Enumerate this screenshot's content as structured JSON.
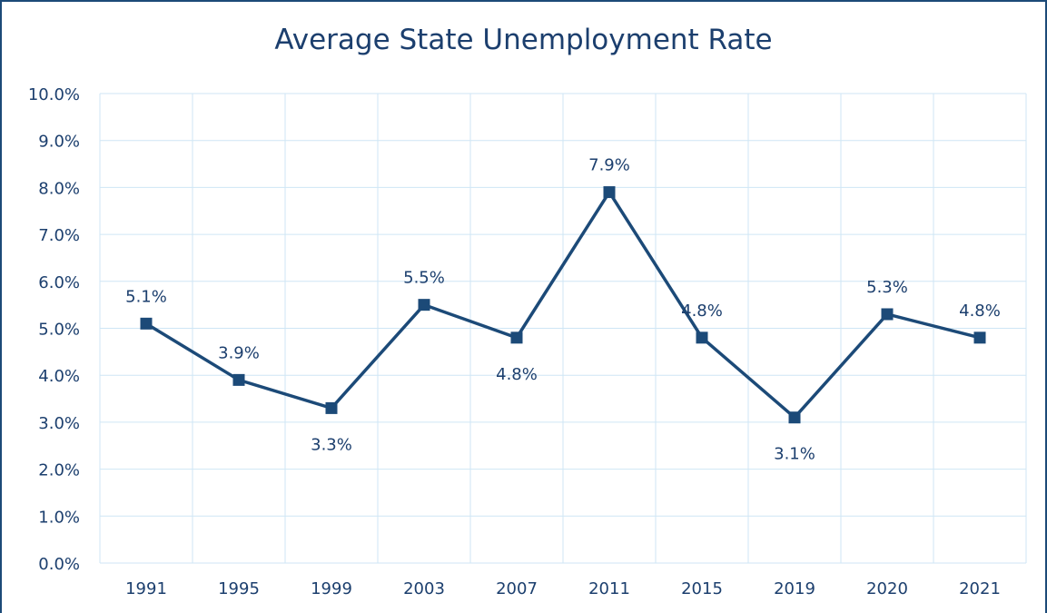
{
  "chart_data": {
    "type": "line",
    "title": "Average State Unemployment Rate",
    "categories": [
      "1991",
      "1995",
      "1999",
      "2003",
      "2007",
      "2011",
      "2015",
      "2019",
      "2020",
      "2021"
    ],
    "values": [
      5.1,
      3.9,
      3.3,
      5.5,
      4.8,
      7.9,
      4.8,
      3.1,
      5.3,
      4.8
    ],
    "data_labels": [
      "5.1%",
      "3.9%",
      "3.3%",
      "5.5%",
      "4.8%",
      "7.9%",
      "4.8%",
      "3.1%",
      "5.3%",
      "4.8%"
    ],
    "ylim": [
      0,
      10
    ],
    "y_ticks": [
      "0.0%",
      "1.0%",
      "2.0%",
      "3.0%",
      "4.0%",
      "5.0%",
      "6.0%",
      "7.0%",
      "8.0%",
      "9.0%",
      "10.0%"
    ],
    "xlabel": "",
    "ylabel": "",
    "grid": true,
    "legend": "none",
    "colors": {
      "line": "#1c4a78",
      "grid": "#cfe6f5",
      "text": "#1c3f6e",
      "frame": "#1c4a78"
    }
  }
}
